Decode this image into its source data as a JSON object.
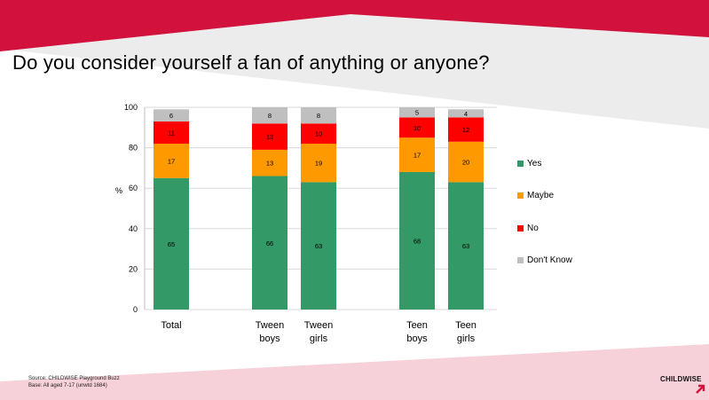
{
  "title": "Do you consider yourself a fan of anything or anyone?",
  "source_line1": "Source: CHILDWISE  Playground Buzz",
  "source_line2": "Base: All aged 7-17 (unwtd 1684)",
  "logo": "CHILDWISE",
  "colors": {
    "banner": "#d2113c",
    "banner_light": "#e9e9e9",
    "footer_pink": "#f6d1d9",
    "yes": "#339966",
    "maybe": "#ff9900",
    "no": "#ff0000",
    "dont_know": "#bfbfbf"
  },
  "chart_data": {
    "type": "bar",
    "stacked": true,
    "ylabel": "%",
    "ylim": [
      0,
      100
    ],
    "yticks": [
      0,
      20,
      40,
      60,
      80,
      100
    ],
    "grid": true,
    "legend_position": "right",
    "categories": [
      [
        "Total"
      ],
      [
        "Tween",
        "boys"
      ],
      [
        "Tween",
        "girls"
      ],
      [
        "Teen",
        "boys"
      ],
      [
        "Teen",
        "girls"
      ]
    ],
    "series": [
      {
        "name": "Yes",
        "color": "#339966",
        "values": [
          65,
          66,
          63,
          68,
          63
        ]
      },
      {
        "name": "Maybe",
        "color": "#ff9900",
        "values": [
          17,
          13,
          19,
          17,
          20
        ]
      },
      {
        "name": "No",
        "color": "#ff0000",
        "values": [
          11,
          13,
          10,
          10,
          12
        ]
      },
      {
        "name": "Don't Know",
        "color": "#bfbfbf",
        "values": [
          6,
          8,
          8,
          5,
          4
        ]
      }
    ]
  }
}
